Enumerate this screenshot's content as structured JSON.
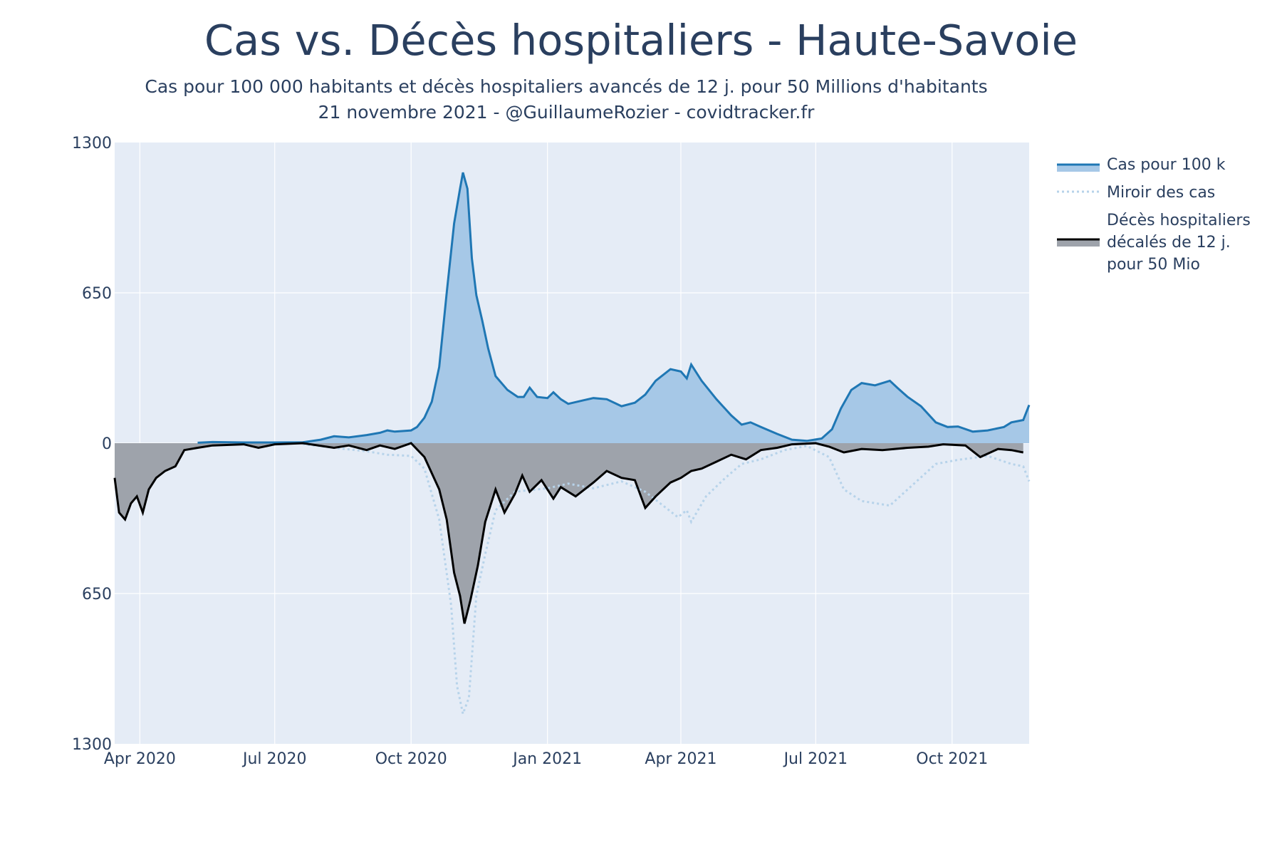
{
  "chart_data": {
    "type": "area",
    "title": "Cas vs. Décès hospitaliers - Haute-Savoie",
    "subtitle_lines": [
      "Cas pour 100 000 habitants et décès hospitaliers avancés de 12 j. pour 50 Millions d'habitants",
      "21 novembre 2021 - @GuillaumeRozier - covidtracker.fr"
    ],
    "xlabel": "",
    "ylabel": "",
    "xlim": [
      "2020-03-15",
      "2021-11-22"
    ],
    "ylim": [
      -1300,
      1300
    ],
    "y_axis_mirrored": true,
    "x_ticks": [
      {
        "date": "2020-04-01",
        "label": "Apr 2020"
      },
      {
        "date": "2020-07-01",
        "label": "Jul 2020"
      },
      {
        "date": "2020-10-01",
        "label": "Oct 2020"
      },
      {
        "date": "2021-01-01",
        "label": "Jan 2021"
      },
      {
        "date": "2021-04-01",
        "label": "Apr 2021"
      },
      {
        "date": "2021-07-01",
        "label": "Jul 2021"
      },
      {
        "date": "2021-10-01",
        "label": "Oct 2021"
      }
    ],
    "y_ticks": [
      {
        "value": 1300,
        "label": "1300"
      },
      {
        "value": 650,
        "label": "650"
      },
      {
        "value": 0,
        "label": "0"
      },
      {
        "value": -650,
        "label": "650"
      },
      {
        "value": -1300,
        "label": "1300"
      }
    ],
    "grid": true,
    "legend_position": "right",
    "colors": {
      "cases_line": "#1f77b4",
      "cases_fill": "#a6c8e7",
      "mirror_line": "#b7d3ea",
      "deaths_line": "#000000",
      "deaths_fill": "#9ea3ab",
      "plot_bg": "#e5ecf6",
      "grid": "#ffffff"
    },
    "series": [
      {
        "name": "Cas pour 100 k",
        "style": "line-with-fill",
        "points": [
          [
            "2020-05-10",
            2
          ],
          [
            "2020-05-20",
            5
          ],
          [
            "2020-06-10",
            3
          ],
          [
            "2020-07-01",
            3
          ],
          [
            "2020-07-20",
            4
          ],
          [
            "2020-08-01",
            15
          ],
          [
            "2020-08-10",
            30
          ],
          [
            "2020-08-20",
            25
          ],
          [
            "2020-09-01",
            35
          ],
          [
            "2020-09-10",
            45
          ],
          [
            "2020-09-15",
            55
          ],
          [
            "2020-09-20",
            50
          ],
          [
            "2020-10-01",
            55
          ],
          [
            "2020-10-05",
            70
          ],
          [
            "2020-10-10",
            110
          ],
          [
            "2020-10-15",
            180
          ],
          [
            "2020-10-20",
            330
          ],
          [
            "2020-10-25",
            650
          ],
          [
            "2020-10-30",
            950
          ],
          [
            "2020-11-03",
            1100
          ],
          [
            "2020-11-05",
            1170
          ],
          [
            "2020-11-08",
            1100
          ],
          [
            "2020-11-11",
            800
          ],
          [
            "2020-11-14",
            640
          ],
          [
            "2020-11-18",
            530
          ],
          [
            "2020-11-22",
            410
          ],
          [
            "2020-11-27",
            290
          ],
          [
            "2020-12-05",
            230
          ],
          [
            "2020-12-12",
            200
          ],
          [
            "2020-12-16",
            200
          ],
          [
            "2020-12-20",
            240
          ],
          [
            "2020-12-25",
            200
          ],
          [
            "2021-01-01",
            195
          ],
          [
            "2021-01-05",
            220
          ],
          [
            "2021-01-10",
            190
          ],
          [
            "2021-01-15",
            170
          ],
          [
            "2021-01-25",
            185
          ],
          [
            "2021-02-01",
            195
          ],
          [
            "2021-02-10",
            190
          ],
          [
            "2021-02-20",
            160
          ],
          [
            "2021-03-01",
            175
          ],
          [
            "2021-03-08",
            210
          ],
          [
            "2021-03-15",
            270
          ],
          [
            "2021-03-25",
            320
          ],
          [
            "2021-04-01",
            310
          ],
          [
            "2021-04-05",
            280
          ],
          [
            "2021-04-08",
            340
          ],
          [
            "2021-04-15",
            270
          ],
          [
            "2021-04-25",
            190
          ],
          [
            "2021-05-05",
            120
          ],
          [
            "2021-05-12",
            80
          ],
          [
            "2021-05-18",
            90
          ],
          [
            "2021-05-25",
            70
          ],
          [
            "2021-06-05",
            40
          ],
          [
            "2021-06-15",
            15
          ],
          [
            "2021-06-25",
            10
          ],
          [
            "2021-07-05",
            20
          ],
          [
            "2021-07-12",
            60
          ],
          [
            "2021-07-18",
            150
          ],
          [
            "2021-07-25",
            230
          ],
          [
            "2021-08-01",
            260
          ],
          [
            "2021-08-10",
            250
          ],
          [
            "2021-08-20",
            270
          ],
          [
            "2021-08-25",
            240
          ],
          [
            "2021-09-01",
            200
          ],
          [
            "2021-09-10",
            160
          ],
          [
            "2021-09-20",
            90
          ],
          [
            "2021-09-28",
            70
          ],
          [
            "2021-10-05",
            72
          ],
          [
            "2021-10-15",
            50
          ],
          [
            "2021-10-25",
            55
          ],
          [
            "2021-11-05",
            70
          ],
          [
            "2021-11-10",
            90
          ],
          [
            "2021-11-18",
            100
          ],
          [
            "2021-11-22",
            165
          ]
        ]
      },
      {
        "name": "Miroir des cas",
        "style": "dotted-line",
        "points": [
          [
            "2020-07-20",
            -4
          ],
          [
            "2020-08-10",
            -20
          ],
          [
            "2020-09-01",
            -35
          ],
          [
            "2020-09-15",
            -50
          ],
          [
            "2020-10-01",
            -55
          ],
          [
            "2020-10-10",
            -110
          ],
          [
            "2020-10-20",
            -330
          ],
          [
            "2020-10-28",
            -700
          ],
          [
            "2020-11-01",
            -1050
          ],
          [
            "2020-11-05",
            -1170
          ],
          [
            "2020-11-09",
            -1100
          ],
          [
            "2020-11-14",
            -660
          ],
          [
            "2020-11-20",
            -480
          ],
          [
            "2020-11-27",
            -290
          ],
          [
            "2020-12-10",
            -210
          ],
          [
            "2021-01-01",
            -195
          ],
          [
            "2021-01-15",
            -175
          ],
          [
            "2021-02-01",
            -195
          ],
          [
            "2021-02-20",
            -165
          ],
          [
            "2021-03-08",
            -210
          ],
          [
            "2021-03-20",
            -270
          ],
          [
            "2021-03-30",
            -320
          ],
          [
            "2021-04-05",
            -290
          ],
          [
            "2021-04-08",
            -340
          ],
          [
            "2021-04-18",
            -230
          ],
          [
            "2021-05-01",
            -150
          ],
          [
            "2021-05-12",
            -90
          ],
          [
            "2021-05-25",
            -70
          ],
          [
            "2021-06-10",
            -30
          ],
          [
            "2021-06-25",
            -12
          ],
          [
            "2021-07-10",
            -60
          ],
          [
            "2021-07-20",
            -200
          ],
          [
            "2021-08-01",
            -250
          ],
          [
            "2021-08-20",
            -270
          ],
          [
            "2021-09-01",
            -200
          ],
          [
            "2021-09-20",
            -90
          ],
          [
            "2021-10-05",
            -72
          ],
          [
            "2021-10-25",
            -55
          ],
          [
            "2021-11-10",
            -90
          ],
          [
            "2021-11-18",
            -100
          ],
          [
            "2021-11-22",
            -165
          ]
        ]
      },
      {
        "name": "Décès hospitaliers décalés de 12 j. pour 50 Mio",
        "legend_lines": [
          "Décès hospitaliers",
          "décalés de 12 j.",
          "pour 50 Mio"
        ],
        "style": "line-with-fill",
        "points": [
          [
            "2020-03-15",
            -150
          ],
          [
            "2020-03-18",
            -300
          ],
          [
            "2020-03-22",
            -330
          ],
          [
            "2020-03-26",
            -260
          ],
          [
            "2020-03-30",
            -230
          ],
          [
            "2020-04-03",
            -300
          ],
          [
            "2020-04-07",
            -200
          ],
          [
            "2020-04-12",
            -150
          ],
          [
            "2020-04-18",
            -120
          ],
          [
            "2020-04-25",
            -100
          ],
          [
            "2020-05-01",
            -30
          ],
          [
            "2020-05-10",
            -20
          ],
          [
            "2020-05-20",
            -10
          ],
          [
            "2020-06-10",
            -5
          ],
          [
            "2020-06-20",
            -20
          ],
          [
            "2020-07-01",
            -5
          ],
          [
            "2020-07-20",
            0
          ],
          [
            "2020-08-10",
            -20
          ],
          [
            "2020-08-20",
            -10
          ],
          [
            "2020-09-01",
            -30
          ],
          [
            "2020-09-10",
            -10
          ],
          [
            "2020-09-20",
            -25
          ],
          [
            "2020-10-01",
            0
          ],
          [
            "2020-10-10",
            -60
          ],
          [
            "2020-10-20",
            -200
          ],
          [
            "2020-10-25",
            -330
          ],
          [
            "2020-10-30",
            -560
          ],
          [
            "2020-11-03",
            -660
          ],
          [
            "2020-11-06",
            -780
          ],
          [
            "2020-11-10",
            -680
          ],
          [
            "2020-11-15",
            -530
          ],
          [
            "2020-11-20",
            -340
          ],
          [
            "2020-11-27",
            -200
          ],
          [
            "2020-12-03",
            -300
          ],
          [
            "2020-12-10",
            -220
          ],
          [
            "2020-12-15",
            -140
          ],
          [
            "2020-12-20",
            -210
          ],
          [
            "2020-12-28",
            -160
          ],
          [
            "2021-01-05",
            -240
          ],
          [
            "2021-01-10",
            -190
          ],
          [
            "2021-01-20",
            -230
          ],
          [
            "2021-02-01",
            -170
          ],
          [
            "2021-02-10",
            -120
          ],
          [
            "2021-02-20",
            -150
          ],
          [
            "2021-03-01",
            -160
          ],
          [
            "2021-03-08",
            -280
          ],
          [
            "2021-03-15",
            -230
          ],
          [
            "2021-03-25",
            -170
          ],
          [
            "2021-04-01",
            -150
          ],
          [
            "2021-04-08",
            -120
          ],
          [
            "2021-04-15",
            -110
          ],
          [
            "2021-04-25",
            -80
          ],
          [
            "2021-05-05",
            -50
          ],
          [
            "2021-05-15",
            -70
          ],
          [
            "2021-05-25",
            -30
          ],
          [
            "2021-06-05",
            -20
          ],
          [
            "2021-06-15",
            -5
          ],
          [
            "2021-07-01",
            0
          ],
          [
            "2021-07-10",
            -15
          ],
          [
            "2021-07-20",
            -40
          ],
          [
            "2021-08-01",
            -25
          ],
          [
            "2021-08-15",
            -30
          ],
          [
            "2021-09-01",
            -20
          ],
          [
            "2021-09-15",
            -15
          ],
          [
            "2021-09-25",
            -5
          ],
          [
            "2021-10-10",
            -10
          ],
          [
            "2021-10-20",
            -60
          ],
          [
            "2021-11-01",
            -25
          ],
          [
            "2021-11-10",
            -30
          ],
          [
            "2021-11-18",
            -40
          ]
        ]
      }
    ]
  }
}
